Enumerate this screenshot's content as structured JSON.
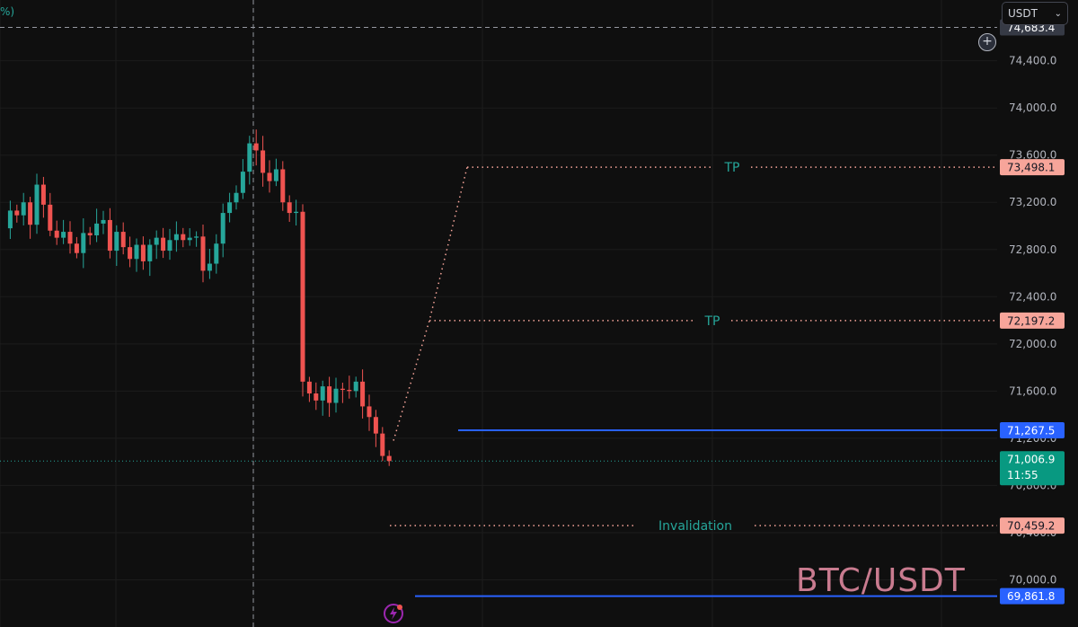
{
  "currency": {
    "label": "USDT"
  },
  "legend": {
    "fragment": "%)"
  },
  "watermark": "BTC/USDT",
  "crosshair": {
    "price_label": "74,683.4",
    "price": 74683.4
  },
  "current": {
    "price_label": "71,006.9",
    "countdown": "11:55",
    "price": 71006.9
  },
  "levels": [
    {
      "price": 73498.1,
      "label": "73,498.1",
      "text": "TP",
      "style": "dotted"
    },
    {
      "price": 72197.2,
      "label": "72,197.2",
      "text": "TP",
      "style": "dotted"
    },
    {
      "price": 70459.2,
      "label": "70,459.2",
      "text": "Invalidation",
      "style": "dotted"
    },
    {
      "price": 71267.5,
      "label": "71,267.5",
      "text": "",
      "style": "solid"
    },
    {
      "price": 69861.8,
      "label": "69,861.8",
      "text": "",
      "style": "solid"
    }
  ],
  "colors": {
    "up": "#26a69a",
    "down": "#ef5350",
    "target": "#f7a59a",
    "blue": "#2962ff",
    "label_teal": "#26a69a"
  },
  "icons": {
    "add": "plus-circle-icon",
    "flash": "lightning-icon",
    "chevron": "chevron-down-icon"
  },
  "chart_data": {
    "type": "candlestick",
    "title": "",
    "y_ticks": [
      70000,
      70400,
      70800,
      71200,
      71600,
      72000,
      72400,
      72800,
      73200,
      73600,
      74000,
      74400
    ],
    "y_tick_labels": [
      "70,000.0",
      "70,400.0",
      "70,800.0",
      "71,200.0",
      "71,600.0",
      "72,000.0",
      "72,400.0",
      "72,800.0",
      "73,200.0",
      "73,600.0",
      "74,000.0",
      "74,400.0"
    ],
    "ylim": [
      69600,
      74900
    ],
    "close_path": [
      72980,
      73130,
      73090,
      73200,
      73010,
      73350,
      73180,
      72960,
      72900,
      72950,
      72850,
      72770,
      72940,
      72920,
      73020,
      73050,
      72790,
      72950,
      72820,
      72720,
      72840,
      72700,
      72840,
      72900,
      72790,
      72880,
      72930,
      72880,
      72900,
      72910,
      72620,
      72680,
      72850,
      73110,
      73200,
      73280,
      73460,
      73700,
      73640,
      73450,
      73380,
      73480,
      73200,
      73110,
      73120,
      71680,
      71580,
      71520,
      71640,
      71500,
      71620,
      71610,
      71600,
      71680,
      71470,
      71380,
      71240,
      71050,
      71007
    ],
    "series": [
      {
        "name": "",
        "values": []
      }
    ]
  }
}
